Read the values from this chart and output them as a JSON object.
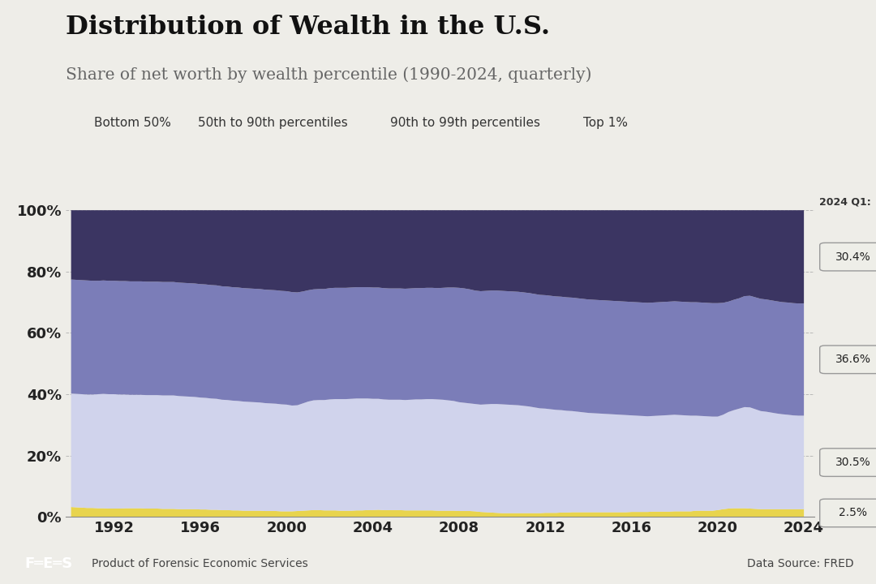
{
  "title": "Distribution of Wealth in the U.S.",
  "subtitle": "Share of net worth by wealth percentile (1990-2024, quarterly)",
  "legend_labels": [
    "Bottom 50%",
    "50th to 90th percentiles",
    "90th to 99th percentiles",
    "Top 1%"
  ],
  "colors": [
    "#e8d44d",
    "#d0d3ec",
    "#7b7db8",
    "#3b3562"
  ],
  "annotation_label": "2024 Q1:",
  "annotations": [
    "30.4%",
    "36.6%",
    "30.5%",
    "2.5%"
  ],
  "footer_left": "Product of Forensic Economic Services",
  "footer_right": "Data Source: FRED",
  "bg_color": "#eeede8",
  "plot_bg_color": "#eeede8",
  "years": [
    1990.0,
    1990.25,
    1990.5,
    1990.75,
    1991.0,
    1991.25,
    1991.5,
    1991.75,
    1992.0,
    1992.25,
    1992.5,
    1992.75,
    1993.0,
    1993.25,
    1993.5,
    1993.75,
    1994.0,
    1994.25,
    1994.5,
    1994.75,
    1995.0,
    1995.25,
    1995.5,
    1995.75,
    1996.0,
    1996.25,
    1996.5,
    1996.75,
    1997.0,
    1997.25,
    1997.5,
    1997.75,
    1998.0,
    1998.25,
    1998.5,
    1998.75,
    1999.0,
    1999.25,
    1999.5,
    1999.75,
    2000.0,
    2000.25,
    2000.5,
    2000.75,
    2001.0,
    2001.25,
    2001.5,
    2001.75,
    2002.0,
    2002.25,
    2002.5,
    2002.75,
    2003.0,
    2003.25,
    2003.5,
    2003.75,
    2004.0,
    2004.25,
    2004.5,
    2004.75,
    2005.0,
    2005.25,
    2005.5,
    2005.75,
    2006.0,
    2006.25,
    2006.5,
    2006.75,
    2007.0,
    2007.25,
    2007.5,
    2007.75,
    2008.0,
    2008.25,
    2008.5,
    2008.75,
    2009.0,
    2009.25,
    2009.5,
    2009.75,
    2010.0,
    2010.25,
    2010.5,
    2010.75,
    2011.0,
    2011.25,
    2011.5,
    2011.75,
    2012.0,
    2012.25,
    2012.5,
    2012.75,
    2013.0,
    2013.25,
    2013.5,
    2013.75,
    2014.0,
    2014.25,
    2014.5,
    2014.75,
    2015.0,
    2015.25,
    2015.5,
    2015.75,
    2016.0,
    2016.25,
    2016.5,
    2016.75,
    2017.0,
    2017.25,
    2017.5,
    2017.75,
    2018.0,
    2018.25,
    2018.5,
    2018.75,
    2019.0,
    2019.25,
    2019.5,
    2019.75,
    2020.0,
    2020.25,
    2020.5,
    2020.75,
    2021.0,
    2021.25,
    2021.5,
    2021.75,
    2022.0,
    2022.25,
    2022.5,
    2022.75,
    2023.0,
    2023.25,
    2023.5,
    2023.75,
    2024.0
  ],
  "bottom50": [
    3.2,
    3.1,
    3.0,
    2.9,
    2.9,
    2.8,
    2.8,
    2.7,
    2.7,
    2.7,
    2.8,
    2.8,
    2.8,
    2.8,
    2.7,
    2.7,
    2.7,
    2.6,
    2.6,
    2.6,
    2.5,
    2.5,
    2.5,
    2.5,
    2.4,
    2.4,
    2.3,
    2.3,
    2.2,
    2.2,
    2.1,
    2.1,
    2.0,
    2.0,
    2.0,
    2.0,
    1.9,
    1.9,
    1.9,
    1.8,
    1.8,
    1.8,
    1.9,
    2.0,
    2.1,
    2.2,
    2.2,
    2.1,
    2.1,
    2.1,
    2.0,
    2.0,
    2.0,
    2.1,
    2.1,
    2.2,
    2.2,
    2.3,
    2.2,
    2.2,
    2.2,
    2.2,
    2.1,
    2.1,
    2.1,
    2.1,
    2.1,
    2.1,
    2.0,
    2.0,
    2.0,
    2.0,
    1.9,
    1.9,
    1.9,
    1.8,
    1.6,
    1.5,
    1.4,
    1.3,
    1.2,
    1.2,
    1.2,
    1.2,
    1.2,
    1.2,
    1.2,
    1.2,
    1.3,
    1.3,
    1.3,
    1.4,
    1.4,
    1.5,
    1.5,
    1.5,
    1.5,
    1.5,
    1.5,
    1.5,
    1.5,
    1.5,
    1.5,
    1.5,
    1.6,
    1.6,
    1.6,
    1.6,
    1.7,
    1.7,
    1.7,
    1.7,
    1.8,
    1.8,
    1.8,
    1.8,
    2.0,
    2.0,
    2.0,
    2.0,
    2.2,
    2.5,
    2.7,
    2.8,
    2.8,
    2.8,
    2.7,
    2.6,
    2.5,
    2.5,
    2.5,
    2.5,
    2.5,
    2.5,
    2.5,
    2.5,
    2.5
  ],
  "p50to90": [
    37.0,
    37.0,
    37.0,
    37.0,
    37.0,
    37.2,
    37.3,
    37.3,
    37.3,
    37.2,
    37.1,
    37.0,
    37.0,
    37.0,
    37.0,
    37.0,
    37.0,
    37.0,
    37.0,
    37.0,
    36.9,
    36.8,
    36.7,
    36.6,
    36.5,
    36.4,
    36.3,
    36.2,
    36.0,
    35.9,
    35.8,
    35.7,
    35.6,
    35.5,
    35.4,
    35.3,
    35.2,
    35.1,
    35.0,
    34.9,
    34.8,
    34.5,
    34.5,
    35.0,
    35.5,
    35.8,
    35.9,
    36.0,
    36.2,
    36.3,
    36.4,
    36.4,
    36.5,
    36.5,
    36.5,
    36.4,
    36.3,
    36.2,
    36.1,
    36.0,
    36.0,
    36.0,
    36.0,
    36.1,
    36.2,
    36.2,
    36.3,
    36.3,
    36.3,
    36.2,
    36.0,
    35.8,
    35.5,
    35.3,
    35.1,
    35.0,
    35.0,
    35.2,
    35.4,
    35.5,
    35.5,
    35.4,
    35.3,
    35.2,
    35.0,
    34.8,
    34.5,
    34.2,
    34.0,
    33.8,
    33.6,
    33.4,
    33.2,
    33.0,
    32.8,
    32.6,
    32.4,
    32.3,
    32.2,
    32.1,
    32.0,
    31.9,
    31.8,
    31.7,
    31.5,
    31.4,
    31.3,
    31.2,
    31.2,
    31.3,
    31.4,
    31.5,
    31.5,
    31.4,
    31.3,
    31.2,
    31.0,
    30.9,
    30.8,
    30.7,
    30.5,
    30.8,
    31.5,
    32.0,
    32.5,
    33.0,
    33.0,
    32.5,
    32.0,
    31.8,
    31.5,
    31.2,
    31.0,
    30.8,
    30.6,
    30.5,
    30.5
  ],
  "p90to99": [
    37.2,
    37.2,
    37.2,
    37.2,
    37.1,
    37.0,
    37.0,
    37.0,
    37.0,
    37.0,
    37.0,
    37.0,
    37.0,
    37.0,
    37.0,
    37.0,
    37.0,
    37.0,
    37.0,
    37.0,
    37.0,
    37.0,
    37.0,
    37.0,
    37.0,
    37.0,
    37.0,
    37.0,
    37.0,
    37.0,
    37.0,
    37.0,
    37.0,
    37.0,
    37.0,
    37.0,
    37.0,
    37.0,
    37.0,
    37.0,
    37.0,
    37.0,
    36.8,
    36.5,
    36.3,
    36.2,
    36.2,
    36.2,
    36.3,
    36.3,
    36.3,
    36.3,
    36.3,
    36.3,
    36.3,
    36.3,
    36.3,
    36.3,
    36.3,
    36.3,
    36.3,
    36.3,
    36.3,
    36.3,
    36.3,
    36.3,
    36.3,
    36.3,
    36.3,
    36.5,
    36.8,
    37.0,
    37.3,
    37.3,
    37.2,
    37.0,
    37.0,
    37.0,
    37.0,
    37.0,
    37.0,
    37.0,
    37.0,
    37.0,
    37.0,
    37.0,
    37.0,
    37.0,
    37.0,
    37.0,
    37.0,
    37.0,
    37.0,
    37.0,
    37.0,
    37.0,
    37.0,
    37.0,
    37.0,
    37.0,
    37.0,
    37.0,
    37.0,
    37.0,
    37.0,
    37.0,
    37.0,
    37.0,
    37.0,
    37.0,
    37.0,
    37.0,
    37.0,
    37.0,
    37.0,
    37.0,
    37.0,
    37.0,
    37.0,
    37.0,
    37.0,
    36.5,
    36.0,
    36.0,
    36.0,
    36.2,
    36.4,
    36.5,
    36.6,
    36.6,
    36.6,
    36.6,
    36.6,
    36.6,
    36.6,
    36.6,
    36.6
  ],
  "top1": [
    22.6,
    22.7,
    22.8,
    22.9,
    23.0,
    23.0,
    22.9,
    23.0,
    23.0,
    23.1,
    23.1,
    23.2,
    23.2,
    23.2,
    23.3,
    23.3,
    23.3,
    23.4,
    23.4,
    23.4,
    23.6,
    23.7,
    23.8,
    23.9,
    24.1,
    24.2,
    24.4,
    24.5,
    24.8,
    24.9,
    25.1,
    25.2,
    25.4,
    25.5,
    25.6,
    25.7,
    25.9,
    26.0,
    26.1,
    26.3,
    26.4,
    26.7,
    26.8,
    26.5,
    26.1,
    25.8,
    25.7,
    25.7,
    25.4,
    25.3,
    25.3,
    25.3,
    25.2,
    25.1,
    25.1,
    25.1,
    25.2,
    25.2,
    25.4,
    25.5,
    25.5,
    25.5,
    25.6,
    25.5,
    25.4,
    25.4,
    25.3,
    25.3,
    25.4,
    25.3,
    25.2,
    25.2,
    25.3,
    25.5,
    25.8,
    26.2,
    26.4,
    26.3,
    26.2,
    26.2,
    26.3,
    26.4,
    26.5,
    26.6,
    26.8,
    27.0,
    27.3,
    27.6,
    27.7,
    27.9,
    28.1,
    28.2,
    28.4,
    28.5,
    28.7,
    28.9,
    29.1,
    29.2,
    29.3,
    29.4,
    29.5,
    29.6,
    29.7,
    29.8,
    29.9,
    30.0,
    30.1,
    30.2,
    30.1,
    30.0,
    29.9,
    29.8,
    29.7,
    29.8,
    29.9,
    30.0,
    30.0,
    30.1,
    30.2,
    30.3,
    30.3,
    30.2,
    29.8,
    29.2,
    28.7,
    28.0,
    27.9,
    28.4,
    28.9,
    29.1,
    29.4,
    29.7,
    30.0,
    30.1,
    30.3,
    30.4,
    30.4
  ],
  "xlim": [
    1989.75,
    2024.5
  ],
  "ylim": [
    0,
    100
  ],
  "xticks": [
    1992,
    1996,
    2000,
    2004,
    2008,
    2012,
    2016,
    2020,
    2024
  ]
}
